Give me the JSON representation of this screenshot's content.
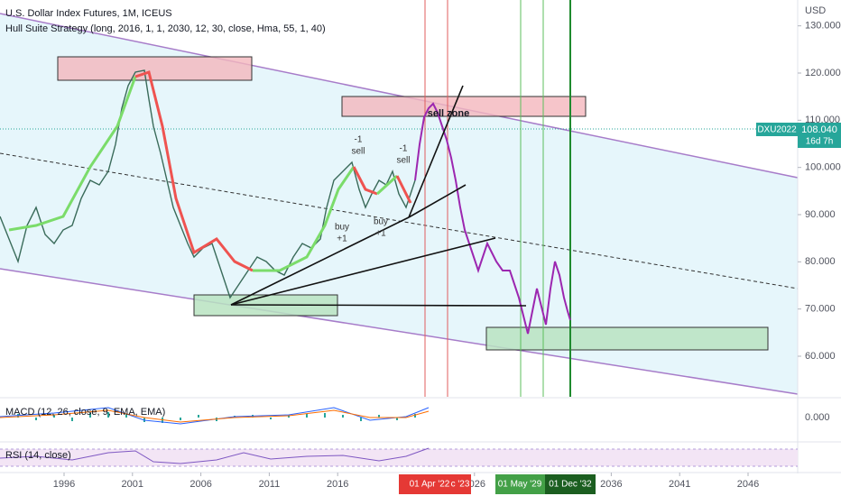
{
  "header": {
    "title": "U.S. Dollar Index Futures, 1M, ICEUS",
    "strategy": "Hull Suite Strategy (long, 2016, 1, 1, 2030, 12, 30, close, Hma, 55, 1, 40)",
    "currency": "USD"
  },
  "y_axis": {
    "ticks": [
      {
        "value": 130,
        "label": "130.000"
      },
      {
        "value": 120,
        "label": "120.000"
      },
      {
        "value": 110,
        "label": "110.000"
      },
      {
        "value": 100,
        "label": "100.000"
      },
      {
        "value": 90,
        "label": "90.000"
      },
      {
        "value": 80,
        "label": "80.000"
      },
      {
        "value": 70,
        "label": "70.000"
      },
      {
        "value": 60,
        "label": "60.000"
      }
    ]
  },
  "price_tag": {
    "symbol": "DXU2022",
    "price": "108.040",
    "countdown": "16d 7h"
  },
  "annotations": {
    "sell_zone": "sell zone",
    "minus_one": "-1",
    "sell": "sell",
    "buy": "buy",
    "plus_one": "+1"
  },
  "macd": {
    "label": "MACD (12, 26, close, 9, EMA, EMA)",
    "zero": "0.000"
  },
  "rsi": {
    "label": "RSI (14, close)"
  },
  "x_axis": {
    "ticks": [
      1996,
      2001,
      2006,
      2011,
      2016,
      2026,
      2036,
      2041,
      2046
    ],
    "highlights": [
      "01 Apr '22",
      "c '23",
      "01 May '29",
      "01 Dec '32"
    ]
  }
}
